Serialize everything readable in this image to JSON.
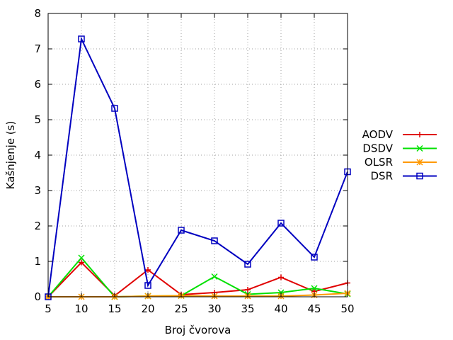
{
  "chart_data": {
    "type": "line",
    "xlabel": "Broj čvorova",
    "ylabel": "Kašnjenje (s)",
    "x": [
      5,
      10,
      15,
      20,
      25,
      30,
      35,
      40,
      45,
      50
    ],
    "xlim": [
      5,
      50
    ],
    "ylim": [
      0,
      8
    ],
    "x_ticks": [
      "5",
      "10",
      "15",
      "20",
      "25",
      "30",
      "35",
      "40",
      "45",
      "50"
    ],
    "y_ticks": [
      "0",
      "1",
      "2",
      "3",
      "4",
      "5",
      "6",
      "7",
      "8"
    ],
    "grid": true,
    "legend_position": "right",
    "series": [
      {
        "name": "AODV",
        "color": "#e00000",
        "marker": "plus",
        "values": [
          0.0,
          0.97,
          0.03,
          0.76,
          0.06,
          0.12,
          0.2,
          0.55,
          0.15,
          0.39
        ]
      },
      {
        "name": "DSDV",
        "color": "#00e000",
        "marker": "cross",
        "values": [
          0.0,
          1.1,
          0.0,
          0.02,
          0.03,
          0.57,
          0.07,
          0.12,
          0.24,
          0.08
        ]
      },
      {
        "name": "OLSR",
        "color": "#ff9900",
        "marker": "star",
        "values": [
          0.0,
          0.0,
          0.0,
          0.02,
          0.03,
          0.02,
          0.02,
          0.02,
          0.05,
          0.1
        ]
      },
      {
        "name": "DSR",
        "color": "#0000c0",
        "marker": "box",
        "values": [
          0.0,
          7.28,
          5.32,
          0.32,
          1.88,
          1.58,
          0.92,
          2.08,
          1.12,
          3.53
        ]
      }
    ]
  }
}
